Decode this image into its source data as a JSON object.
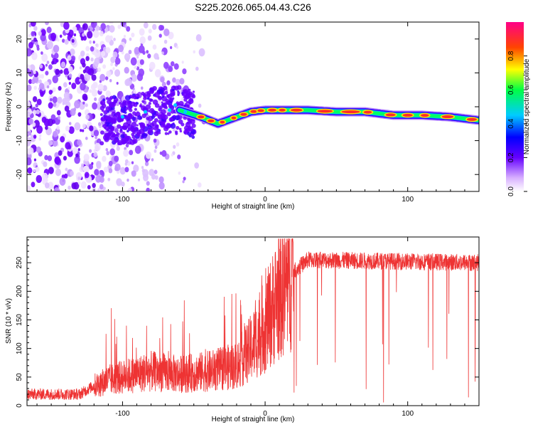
{
  "title": "S225.2026.065.04.43.C26",
  "chart_data": [
    {
      "type": "heatmap",
      "xlabel": "Height of straight line (km)",
      "ylabel": "Frequency (Hz)",
      "xlim": [
        -167,
        150
      ],
      "ylim": [
        -25,
        25
      ],
      "xticks": [
        -100,
        0,
        100
      ],
      "yticks": [
        -20,
        -10,
        0,
        10,
        20
      ],
      "colorbar": {
        "label": "Normalized spectral amplitude",
        "range": [
          0,
          1
        ],
        "ticks": [
          0.0,
          0.2,
          0.4,
          0.6,
          0.8
        ]
      },
      "ridge": [
        {
          "x": -95,
          "f": -4
        },
        {
          "x": -80,
          "f": -1
        },
        {
          "x": -60,
          "f": -1
        },
        {
          "x": -45,
          "f": -3
        },
        {
          "x": -33,
          "f": -5
        },
        {
          "x": -20,
          "f": -3
        },
        {
          "x": -10,
          "f": -1.5
        },
        {
          "x": 0,
          "f": -1
        },
        {
          "x": 10,
          "f": -1
        },
        {
          "x": 30,
          "f": -1
        },
        {
          "x": 50,
          "f": -1.5
        },
        {
          "x": 70,
          "f": -1.5
        },
        {
          "x": 90,
          "f": -2.5
        },
        {
          "x": 110,
          "f": -2.5
        },
        {
          "x": 130,
          "f": -3
        },
        {
          "x": 150,
          "f": -4
        }
      ]
    },
    {
      "type": "line",
      "xlabel": "Height of straight line (km)",
      "ylabel": "SNR (10 * v/v)",
      "xlim": [
        -167,
        150
      ],
      "ylim": [
        0,
        295
      ],
      "xticks": [
        -100,
        0,
        100
      ],
      "yticks": [
        0,
        50,
        100,
        150,
        200,
        250
      ],
      "color": "#ee3333",
      "series": [
        {
          "name": "SNR",
          "envelope": [
            {
              "x": -167,
              "mean": 20
            },
            {
              "x": -130,
              "mean": 20
            },
            {
              "x": -120,
              "mean": 35
            },
            {
              "x": -110,
              "mean": 45
            },
            {
              "x": -80,
              "mean": 60
            },
            {
              "x": -60,
              "mean": 55
            },
            {
              "x": -40,
              "mean": 60
            },
            {
              "x": -20,
              "mean": 70
            },
            {
              "x": -10,
              "mean": 100
            },
            {
              "x": 0,
              "mean": 140
            },
            {
              "x": 10,
              "mean": 195
            },
            {
              "x": 20,
              "mean": 235
            },
            {
              "x": 30,
              "mean": 255
            },
            {
              "x": 150,
              "mean": 250
            }
          ]
        }
      ]
    }
  ]
}
